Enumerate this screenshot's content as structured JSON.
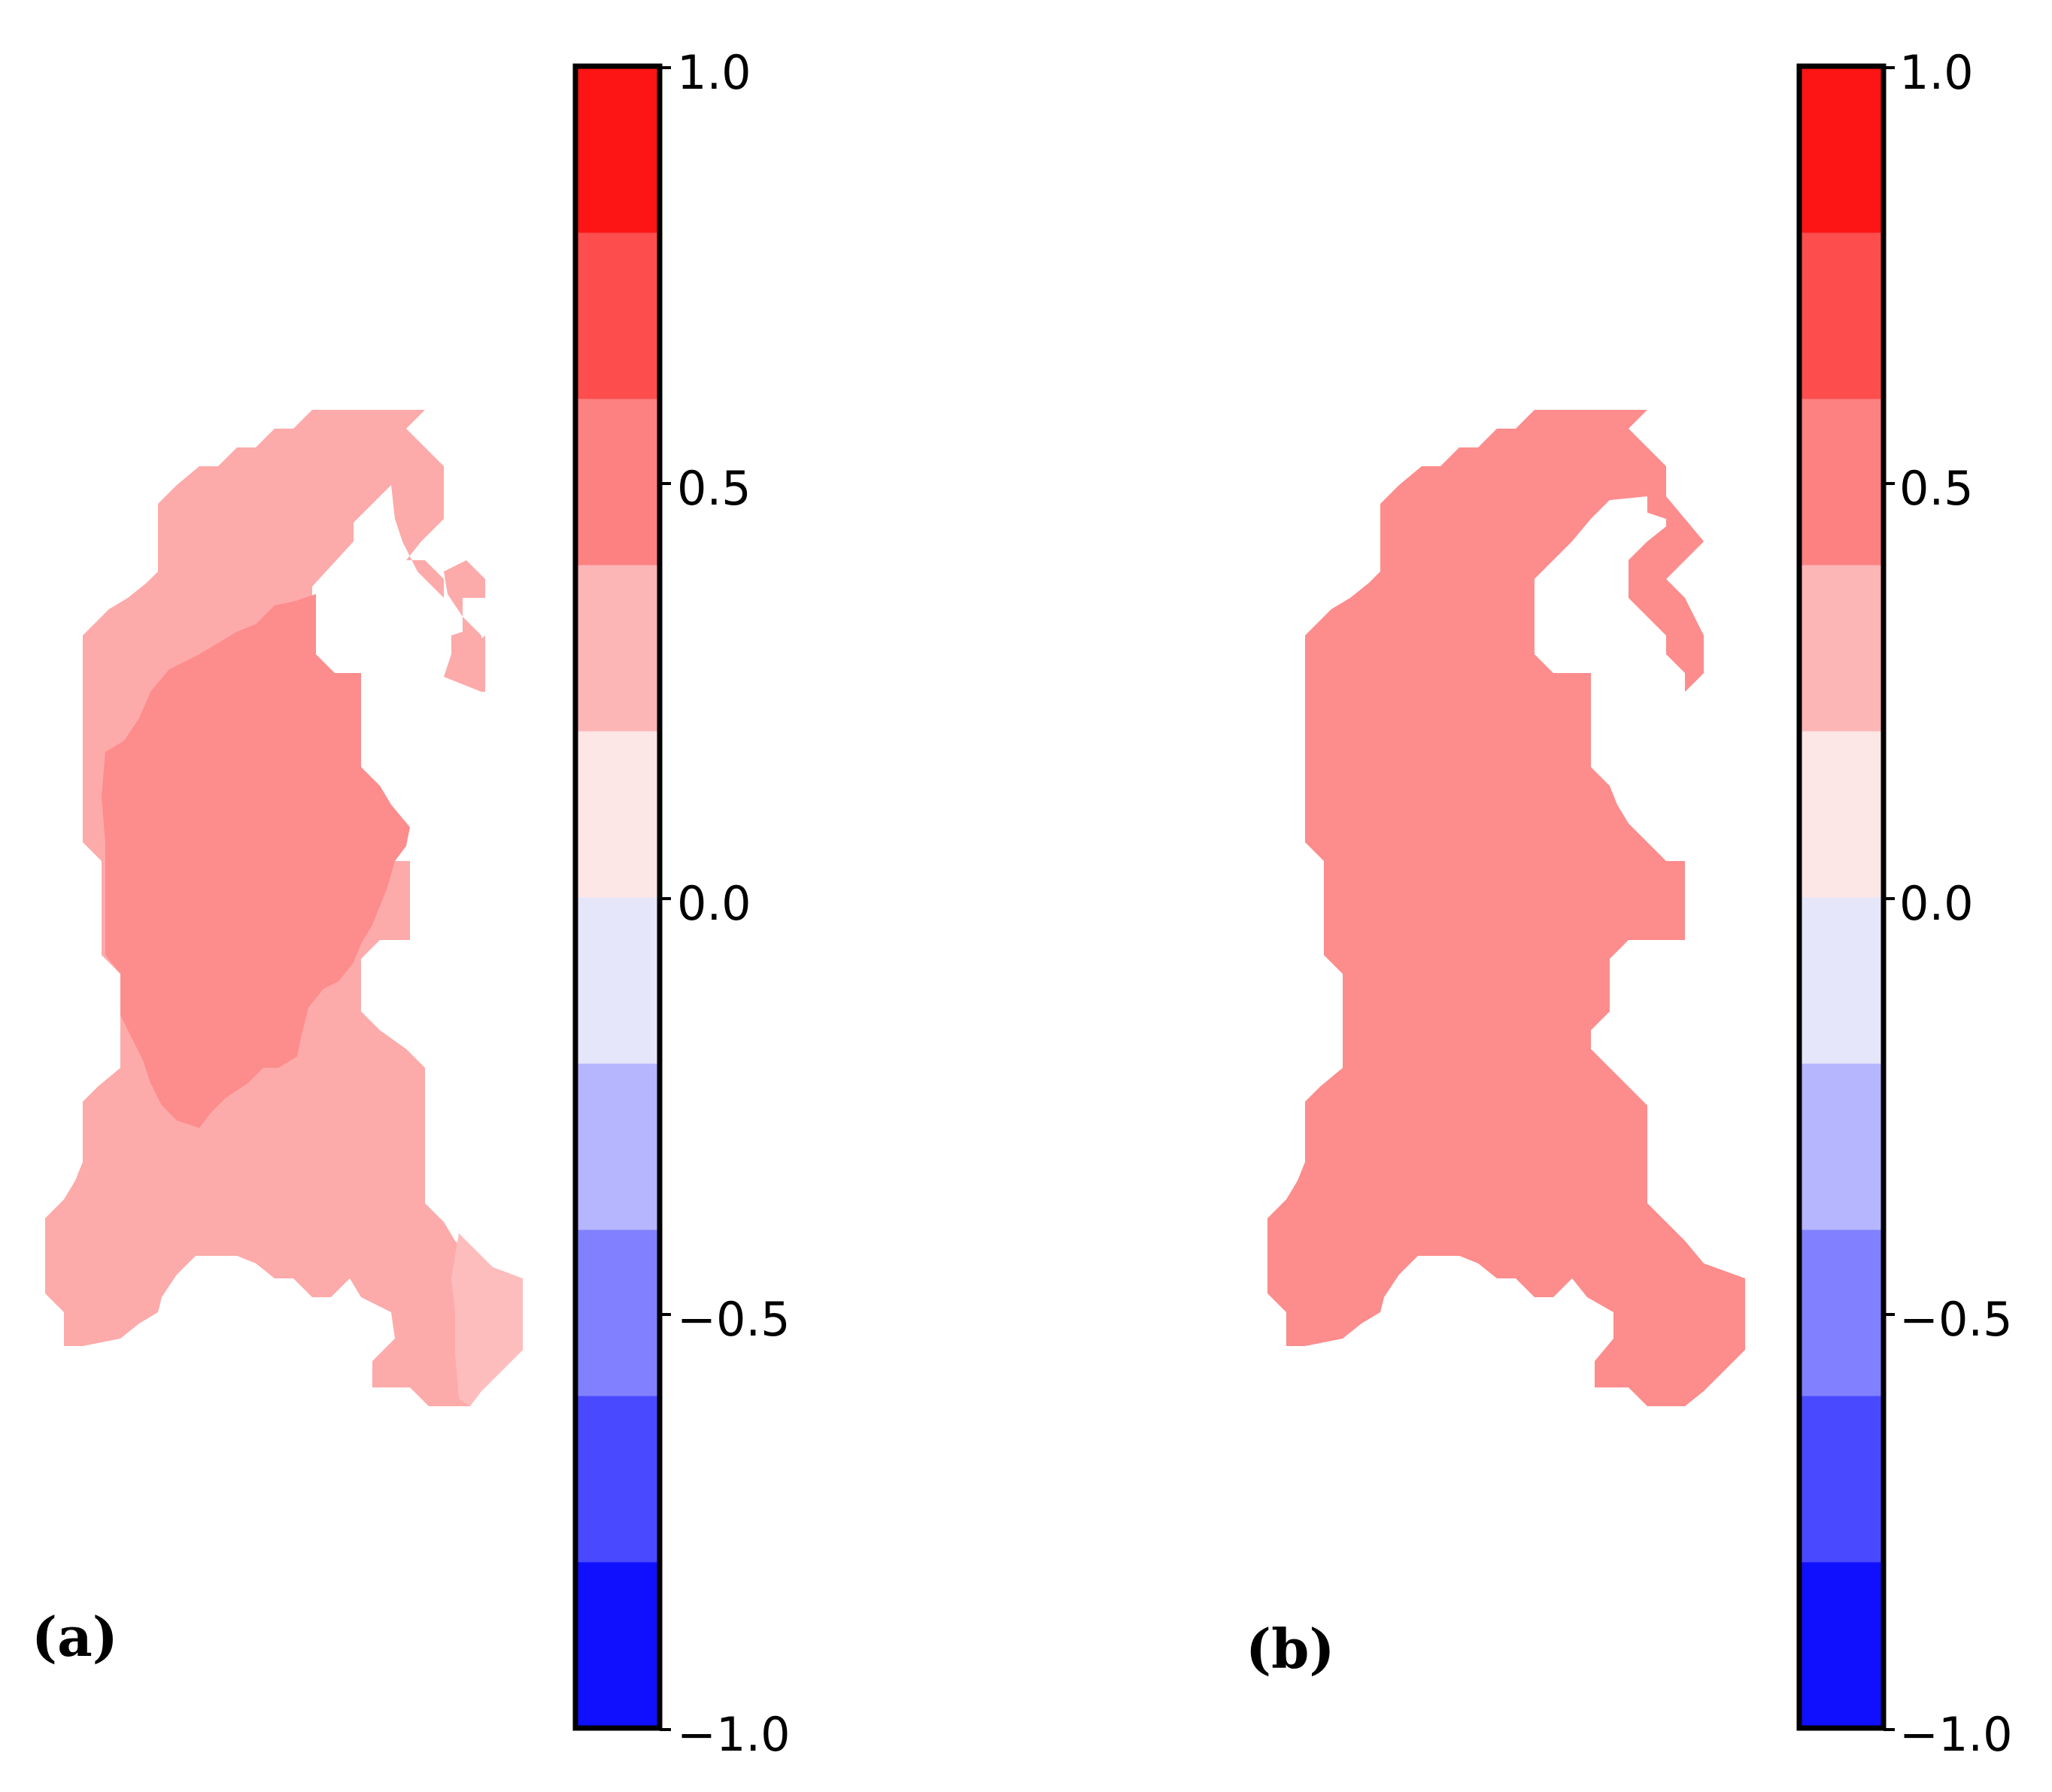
{
  "panels": [
    {
      "label": "(a)",
      "colorbar": {
        "ticks": [
          "1.0",
          "0.5",
          "0.0",
          "−0.5",
          "−1.0"
        ]
      },
      "regions": [
        {
          "name": "outer-zone",
          "color": "#fdaaaa"
        },
        {
          "name": "core-zone",
          "color": "#fd8c8c"
        },
        {
          "name": "southeast-patch",
          "color": "#fdbdbd"
        }
      ]
    },
    {
      "label": "(b)",
      "colorbar": {
        "ticks": [
          "1.0",
          "0.5",
          "0.0",
          "−0.5",
          "−1.0"
        ]
      },
      "regions": [
        {
          "name": "whole-area",
          "color": "#fd8c8c"
        }
      ]
    }
  ],
  "colormap": {
    "min": -1.0,
    "max": 1.0,
    "levels": 10,
    "colors": [
      "#1010ff",
      "#4949ff",
      "#8181ff",
      "#b6b6ff",
      "#e6e6fb",
      "#fde6e6",
      "#fdb6b6",
      "#fd8181",
      "#fd4d4d",
      "#fd1414"
    ]
  }
}
